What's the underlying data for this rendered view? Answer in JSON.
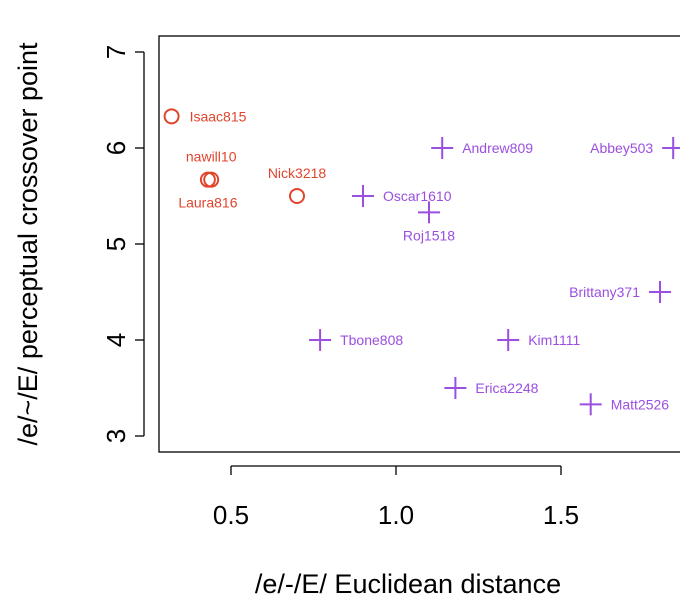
{
  "chart_data": {
    "type": "scatter",
    "xlabel": "/e/-/E/ Euclidean distance",
    "ylabel": "/e/~/E/ perceptual crossover point",
    "xlim": [
      0.25,
      1.85
    ],
    "ylim": [
      2.87,
      7.13
    ],
    "xticks": [
      0.5,
      1.0,
      1.5
    ],
    "xtick_labels": [
      "0.5",
      "1.0",
      "1.5"
    ],
    "yticks": [
      3,
      4,
      5,
      6,
      7
    ],
    "ytick_labels": [
      "3",
      "4",
      "5",
      "6",
      "7"
    ],
    "grid": false,
    "series": [
      {
        "marker": "circle",
        "color": "#e0452c",
        "points": [
          {
            "label": "Isaac815",
            "x": 0.32,
            "y": 6.33,
            "label_pos": "right"
          },
          {
            "label": "nawill10",
            "x": 0.44,
            "y": 5.67,
            "label_pos": "above"
          },
          {
            "label": "Laura816",
            "x": 0.43,
            "y": 5.67,
            "label_pos": "below"
          },
          {
            "label": "Nick3218",
            "x": 0.7,
            "y": 5.5,
            "label_pos": "above"
          }
        ]
      },
      {
        "marker": "plus",
        "color": "#9b4fe0",
        "points": [
          {
            "label": "Andrew809",
            "x": 1.14,
            "y": 6.0,
            "label_pos": "right"
          },
          {
            "label": "Abbey503",
            "x": 1.84,
            "y": 6.0,
            "label_pos": "left"
          },
          {
            "label": "Oscar1610",
            "x": 0.9,
            "y": 5.5,
            "label_pos": "right"
          },
          {
            "label": "Roj1518",
            "x": 1.1,
            "y": 5.33,
            "label_pos": "below"
          },
          {
            "label": "Brittany371",
            "x": 1.8,
            "y": 4.5,
            "label_pos": "left"
          },
          {
            "label": "Tbone808",
            "x": 0.77,
            "y": 4.0,
            "label_pos": "right"
          },
          {
            "label": "Kim1111",
            "x": 1.34,
            "y": 4.0,
            "label_pos": "right"
          },
          {
            "label": "Erica2248",
            "x": 1.18,
            "y": 3.5,
            "label_pos": "right"
          },
          {
            "label": "Matt2526",
            "x": 1.59,
            "y": 3.33,
            "label_pos": "right"
          }
        ]
      }
    ]
  }
}
